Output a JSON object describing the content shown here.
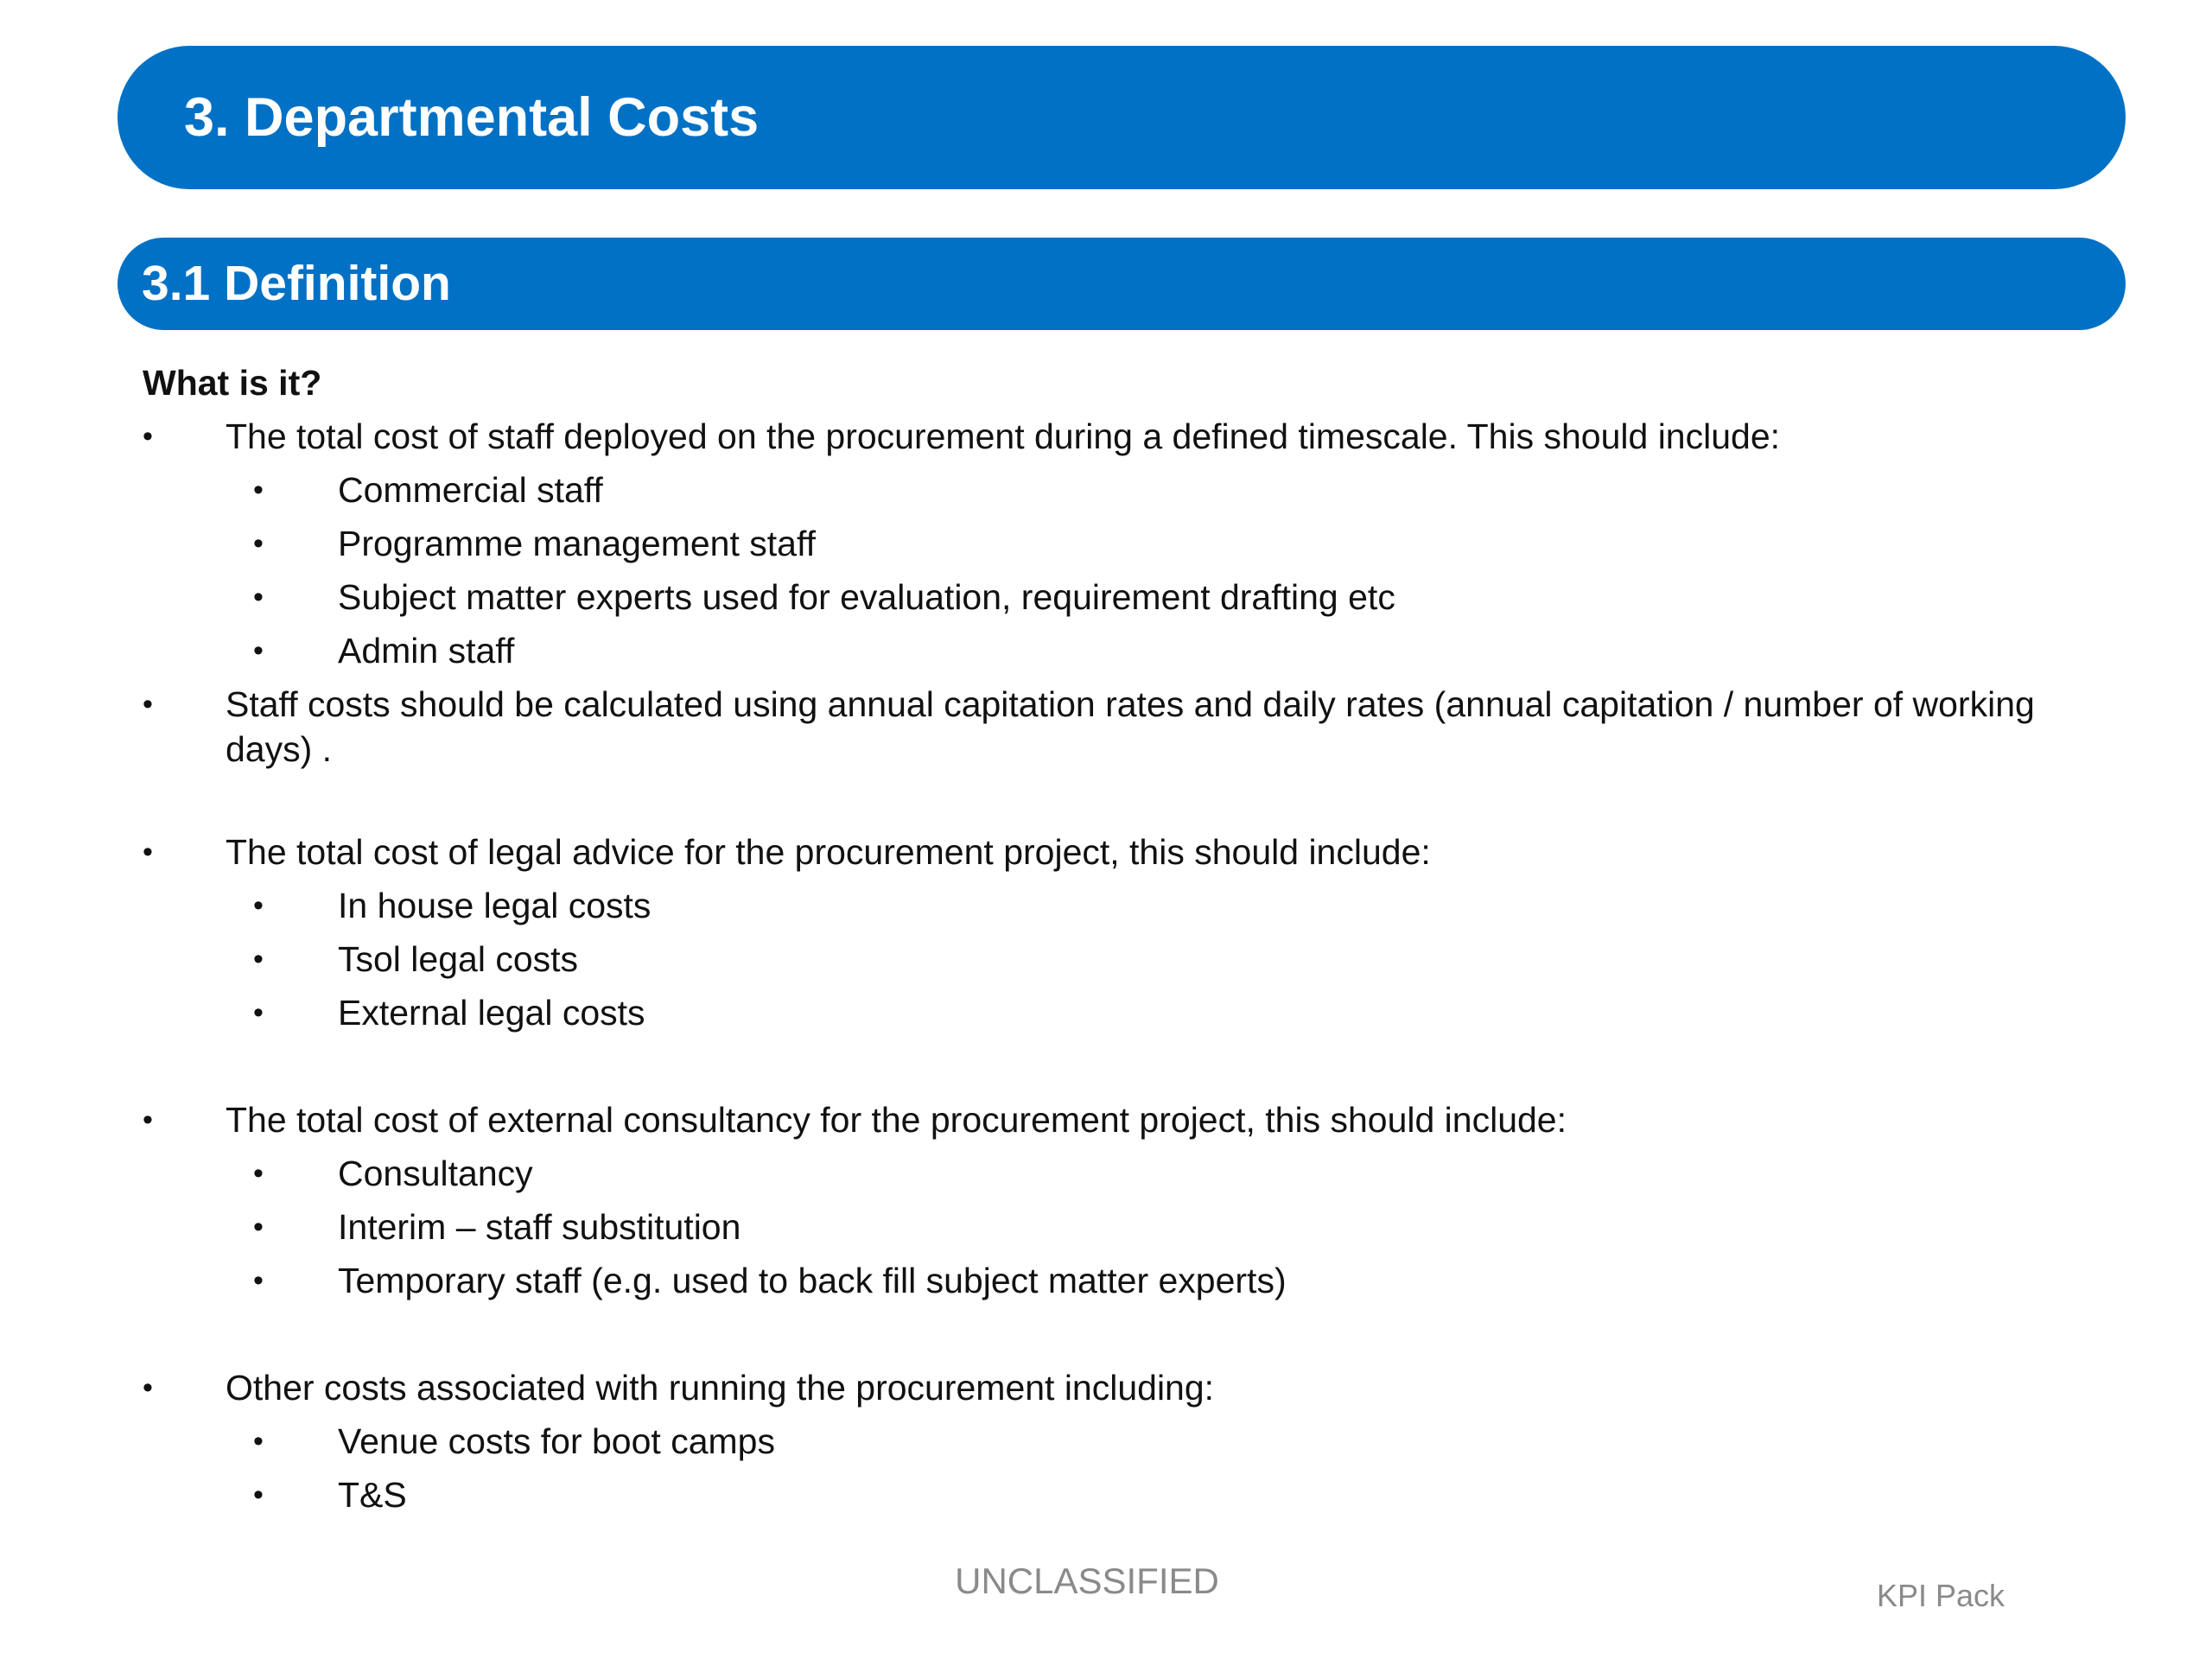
{
  "header": {
    "title": "3. Departmental Costs",
    "subtitle": "3.1 Definition"
  },
  "content": {
    "question": "What is it?",
    "bullet_glyph": "•",
    "items": [
      {
        "text": "The total cost of staff deployed on the procurement during a defined timescale. This should include:",
        "subitems": [
          "Commercial staff",
          "Programme management staff",
          "Subject matter experts used for evaluation, requirement drafting etc",
          "Admin staff"
        ]
      },
      {
        "text": "Staff costs should be calculated using annual capitation rates and daily rates (annual capitation / number of working days) .",
        "subitems": []
      },
      {
        "text": "The total cost of legal advice for the procurement project, this should include:",
        "subitems": [
          "In house legal costs",
          "Tsol legal costs",
          "External legal costs"
        ]
      },
      {
        "text": "The total cost of external consultancy for the procurement project, this should include:",
        "subitems": [
          "Consultancy",
          "Interim – staff substitution",
          "Temporary staff (e.g. used to back fill subject matter experts)"
        ]
      },
      {
        "text": "Other costs associated with running the procurement including:",
        "subitems": [
          "Venue costs for boot camps",
          "T&S"
        ]
      }
    ]
  },
  "footer": {
    "classification": "UNCLASSIFIED",
    "pack": "KPI Pack"
  },
  "colors": {
    "banner": "#0071c5",
    "footer_text": "#8a8a8a"
  }
}
